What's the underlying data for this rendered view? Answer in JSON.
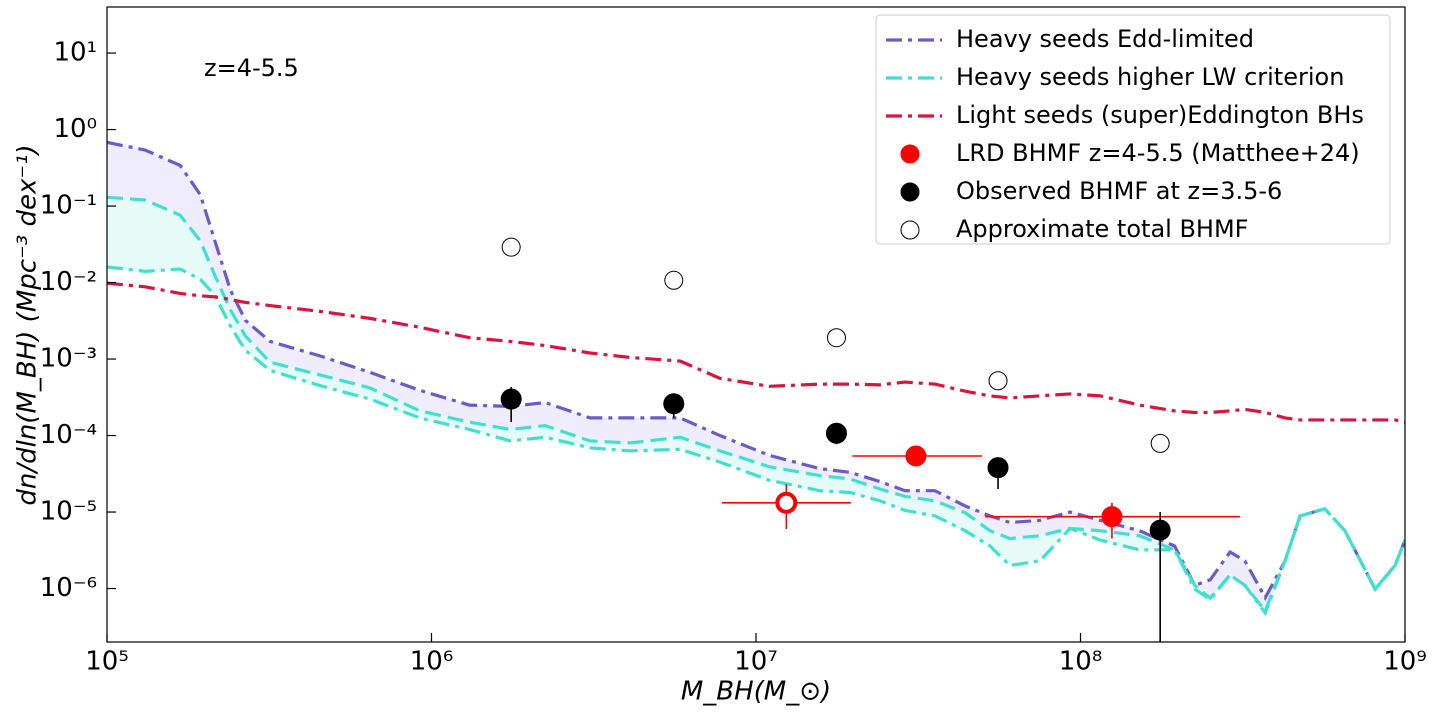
{
  "chart_data": {
    "type": "line",
    "annotation": "z=4-5.5",
    "xlabel": "M_BH(M_⊙)",
    "ylabel": "dn/dln(M_BH) (Mpc⁻³ dex⁻¹)",
    "log_x": true,
    "log_y": true,
    "xlim": [
      100000,
      1000000000
    ],
    "ylim": [
      2e-07,
      40
    ],
    "xticks": [
      {
        "value": 100000,
        "label": "10⁵"
      },
      {
        "value": 1000000,
        "label": "10⁶"
      },
      {
        "value": 10000000,
        "label": "10⁷"
      },
      {
        "value": 100000000,
        "label": "10⁸"
      },
      {
        "value": 1000000000,
        "label": "10⁹"
      }
    ],
    "yticks": [
      {
        "value": 1e-06,
        "label": "10⁻⁶"
      },
      {
        "value": 1e-05,
        "label": "10⁻⁵"
      },
      {
        "value": 0.0001,
        "label": "10⁻⁴"
      },
      {
        "value": 0.001,
        "label": "10⁻³"
      },
      {
        "value": 0.01,
        "label": "10⁻²"
      },
      {
        "value": 0.1,
        "label": "10⁻¹"
      },
      {
        "value": 1,
        "label": "10⁰"
      },
      {
        "value": 10,
        "label": "10¹"
      }
    ],
    "legend": "upper right",
    "x": [
      100000,
      131000,
      168000,
      194000,
      215000,
      240000,
      267000,
      318000,
      453000,
      646000,
      920000,
      1310000,
      1750000,
      2240000,
      3080000,
      4090000,
      5840000,
      7740000,
      11000000,
      15700000,
      19500000,
      24100000,
      28800000,
      35600000,
      44100000,
      52600000,
      60600000,
      75000000,
      92900000,
      115000000,
      152000000,
      195000000,
      225000000,
      251000000,
      289000000,
      321000000,
      371000000,
      427000000,
      475000000,
      566000000,
      653000000,
      809000000,
      932000000,
      1000000000
    ],
    "series": [
      {
        "name": "Heavy seeds Edd-limited",
        "type": "line",
        "color": "#6a5acd",
        "band_color": "#efedfb",
        "style": "dashdot",
        "values": [
          0.68,
          0.54,
          0.34,
          0.14,
          0.035,
          0.008,
          0.0032,
          0.0017,
          0.0011,
          0.00067,
          0.00039,
          0.00025,
          0.00024,
          0.00027,
          0.00017,
          0.00017,
          0.00017,
          0.0001,
          5.5e-05,
          3.7e-05,
          3.3e-05,
          2.5e-05,
          1.9e-05,
          1.9e-05,
          1.2e-05,
          8.9e-06,
          7.3e-06,
          7.8e-06,
          1e-05,
          7.8e-06,
          5.7e-06,
          3.6e-06,
          1.1e-06,
          1.3e-06,
          3e-06,
          2.3e-06,
          7.6e-07,
          2.3e-06,
          8.9e-06,
          1.1e-05,
          5.7e-06,
          9.8e-07,
          2e-06,
          4.3e-06
        ]
      },
      {
        "name": "Heavy seeds higher LW criterion",
        "type": "line",
        "color": "#40e0d0",
        "band_color": "#e6faf8",
        "style": "dashdot",
        "values": [
          0.016,
          0.014,
          0.015,
          0.011,
          0.0068,
          0.0027,
          0.0013,
          0.00071,
          0.00045,
          0.0003,
          0.00017,
          0.00012,
          8.5e-05,
          9.5e-05,
          6.9e-05,
          6.3e-05,
          6.6e-05,
          4.5e-05,
          2.6e-05,
          1.9e-05,
          1.8e-05,
          1.4e-05,
          1.05e-05,
          8.9e-06,
          5.7e-06,
          3.6e-06,
          2e-06,
          2.3e-06,
          6.1e-06,
          4.3e-06,
          3.2e-06,
          3.2e-06,
          9.8e-07,
          7.2e-07,
          1.5e-06,
          1.1e-06,
          4.8e-07,
          2.3e-06,
          8.9e-06,
          1.1e-05,
          5.7e-06,
          9.8e-07,
          2e-06,
          4.3e-06
        ],
        "upper": [
          0.13,
          0.12,
          0.076,
          0.035,
          0.0124,
          0.0044,
          0.002,
          0.00091,
          0.00062,
          0.00042,
          0.00021,
          0.00015,
          0.00012,
          0.000135,
          8.5e-05,
          8e-05,
          9.5e-05,
          6.3e-05,
          3.9e-05,
          3e-05,
          2.7e-05,
          2e-05,
          1.6e-05,
          1.4e-05,
          9.8e-06,
          5.7e-06,
          4.5e-06,
          4.9e-06,
          6.1e-06,
          5.7e-06,
          4.9e-06,
          3.2e-06,
          1.1e-06,
          7.5e-07,
          1.5e-06,
          1.1e-06,
          5.1e-07,
          2.3e-06,
          8.9e-06,
          1.1e-05,
          5.7e-06,
          9.8e-07,
          2e-06,
          4.3e-06
        ]
      },
      {
        "name": "Light seeds (super)Eddington BHs",
        "type": "line",
        "color": "#dc143c",
        "style": "dashdot",
        "values": [
          0.0098,
          0.0088,
          0.0072,
          0.0067,
          0.0065,
          0.006,
          0.0055,
          0.005,
          0.0042,
          0.0034,
          0.0026,
          0.0019,
          0.0017,
          0.0015,
          0.0012,
          0.00105,
          0.00094,
          0.00056,
          0.00044,
          0.00047,
          0.00047,
          0.00046,
          0.0005,
          0.00047,
          0.00038,
          0.00033,
          0.00031,
          0.00033,
          0.00035,
          0.00033,
          0.00025,
          0.00021,
          0.0002,
          0.0002,
          0.00021,
          0.00022,
          0.0002,
          0.00017,
          0.00016,
          0.00016,
          0.00016,
          0.00016,
          0.00016,
          0.00015
        ]
      },
      {
        "name": "LRD BHMF z=4-5.5 (Matthee+24)",
        "type": "scatter",
        "color": "#ff0000",
        "hollow": [
          true,
          false,
          false
        ],
        "x": [
          12400000,
          31100000,
          125000000
        ],
        "values": [
          1.32e-05,
          5.4e-05,
          8.7e-06
        ],
        "xerr": [
          [
            4550000,
            7200000
          ],
          [
            11300000,
            18600000
          ],
          [
            74200000,
            185000000
          ]
        ],
        "yerr": [
          [
            7.2e-06,
            9.8e-06
          ],
          [
            8e-06,
            8e-06
          ],
          [
            4.2e-06,
            4.5e-06
          ]
        ]
      },
      {
        "name": "Observed BHMF at z=3.5-6",
        "type": "scatter",
        "color": "#000000",
        "hollow": [
          false,
          false,
          false,
          false,
          false
        ],
        "x": [
          1760000,
          5580000,
          17700000,
          55700000,
          176000000
        ],
        "values": [
          0.0003,
          0.00026,
          0.000107,
          3.8e-05,
          5.8e-06
        ],
        "yerr": [
          [
            0.00015,
            0.00013
          ],
          [
            9e-05,
            5e-06
          ],
          [
            3e-05,
            3e-06
          ],
          [
            1.8e-05,
            2e-06
          ],
          [
            5.8e-06,
            4.2e-06
          ]
        ]
      },
      {
        "name": "Approximate total BHMF",
        "type": "scatter",
        "color": "#000000",
        "hollow": [
          true,
          true,
          true,
          true,
          true
        ],
        "x": [
          1760000,
          5580000,
          17700000,
          55700000,
          176000000
        ],
        "values": [
          0.029,
          0.0107,
          0.0019,
          0.00052,
          7.9e-05
        ]
      }
    ]
  }
}
